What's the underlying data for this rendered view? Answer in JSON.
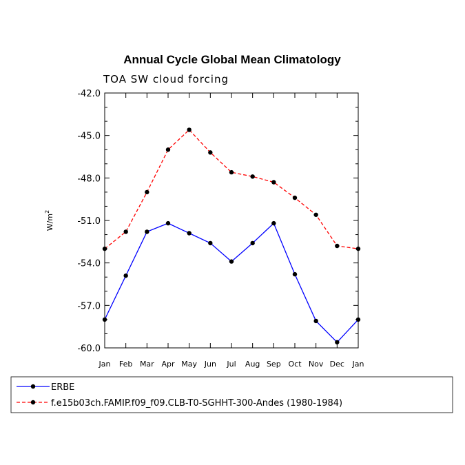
{
  "chart_data": {
    "type": "line",
    "title": "Annual Cycle Global Mean Climatology",
    "subtitle": "TOA SW cloud forcing",
    "ylabel": "W/m",
    "ylabel_sup": "2",
    "ylim": [
      -60.0,
      -42.0
    ],
    "yticks": [
      "-42.0",
      "-45.0",
      "-48.0",
      "-51.0",
      "-54.0",
      "-57.0",
      "-60.0"
    ],
    "categories": [
      "Jan",
      "Feb",
      "Mar",
      "Apr",
      "May",
      "Jun",
      "Jul",
      "Aug",
      "Sep",
      "Oct",
      "Nov",
      "Dec",
      "Jan"
    ],
    "series": [
      {
        "name": "ERBE",
        "color": "#0000ff",
        "dash": "solid",
        "values": [
          -58.0,
          -54.9,
          -51.8,
          -51.2,
          -51.9,
          -52.6,
          -53.9,
          -52.6,
          -51.2,
          -54.8,
          -58.1,
          -59.6,
          -58.0
        ]
      },
      {
        "name": "f.e15b03ch.FAMIP.f09_f09.CLB-T0-SGHHT-300-Andes (1980-1984)",
        "color": "#ff0000",
        "dash": "dashed",
        "values": [
          -53.0,
          -51.8,
          -49.0,
          -46.0,
          -44.6,
          -46.2,
          -47.6,
          -47.9,
          -48.3,
          -49.4,
          -50.6,
          -52.8,
          -53.0
        ]
      }
    ]
  }
}
